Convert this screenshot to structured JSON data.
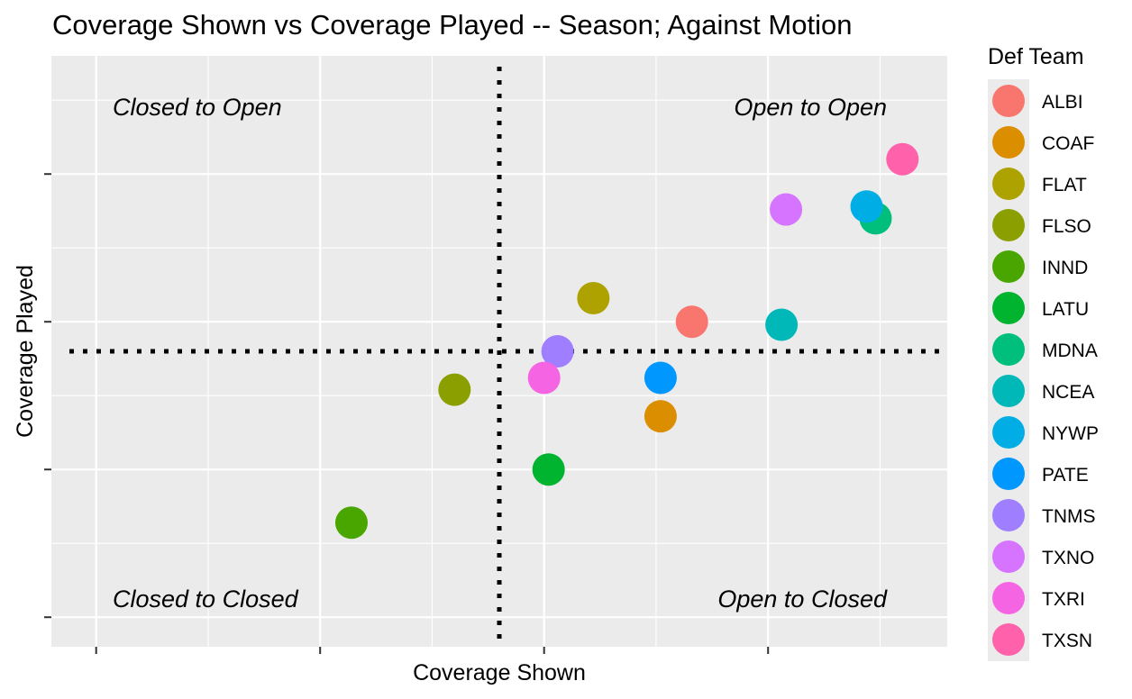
{
  "chart_data": {
    "type": "scatter",
    "title": "Coverage Shown vs Coverage Played -- Season; Against Motion",
    "xlabel": "Coverage Shown",
    "ylabel": "Coverage Played",
    "xlim": [
      -1.0,
      1.0
    ],
    "ylim": [
      -1.0,
      1.0
    ],
    "reference_lines": {
      "x": 0,
      "y": 0,
      "style": "dotted"
    },
    "tick_labels_shown": false,
    "grid": true,
    "legend": {
      "title": "Def Team",
      "position": "right"
    },
    "quadrant_labels": {
      "top_left": "Closed to Open",
      "top_right": "Open to Open",
      "bottom_left": "Closed to Closed",
      "bottom_right": "Open to Closed"
    },
    "points": [
      {
        "team": "ALBI",
        "x": 0.43,
        "y": 0.1,
        "color": "#F8766D"
      },
      {
        "team": "COAF",
        "x": 0.36,
        "y": -0.22,
        "color": "#DB8E00"
      },
      {
        "team": "FLAT",
        "x": 0.21,
        "y": 0.18,
        "color": "#AEA200"
      },
      {
        "team": "FLSO",
        "x": -0.1,
        "y": -0.13,
        "color": "#8BA000"
      },
      {
        "team": "INND",
        "x": -0.33,
        "y": -0.58,
        "color": "#49A500"
      },
      {
        "team": "LATU",
        "x": 0.11,
        "y": -0.4,
        "color": "#00B42F"
      },
      {
        "team": "MDNA",
        "x": 0.84,
        "y": 0.45,
        "color": "#00BE7C"
      },
      {
        "team": "NCEA",
        "x": 0.63,
        "y": 0.09,
        "color": "#00B8B8"
      },
      {
        "team": "NYWP",
        "x": 0.82,
        "y": 0.49,
        "color": "#00AEE5"
      },
      {
        "team": "PATE",
        "x": 0.36,
        "y": -0.09,
        "color": "#0098FF"
      },
      {
        "team": "TNMS",
        "x": 0.13,
        "y": 0.0,
        "color": "#9F7FFF"
      },
      {
        "team": "TXNO",
        "x": 0.64,
        "y": 0.48,
        "color": "#D674FF"
      },
      {
        "team": "TXRI",
        "x": 0.1,
        "y": -0.09,
        "color": "#F564E3"
      },
      {
        "team": "TXSN",
        "x": 0.9,
        "y": 0.65,
        "color": "#FF61AB"
      }
    ]
  }
}
